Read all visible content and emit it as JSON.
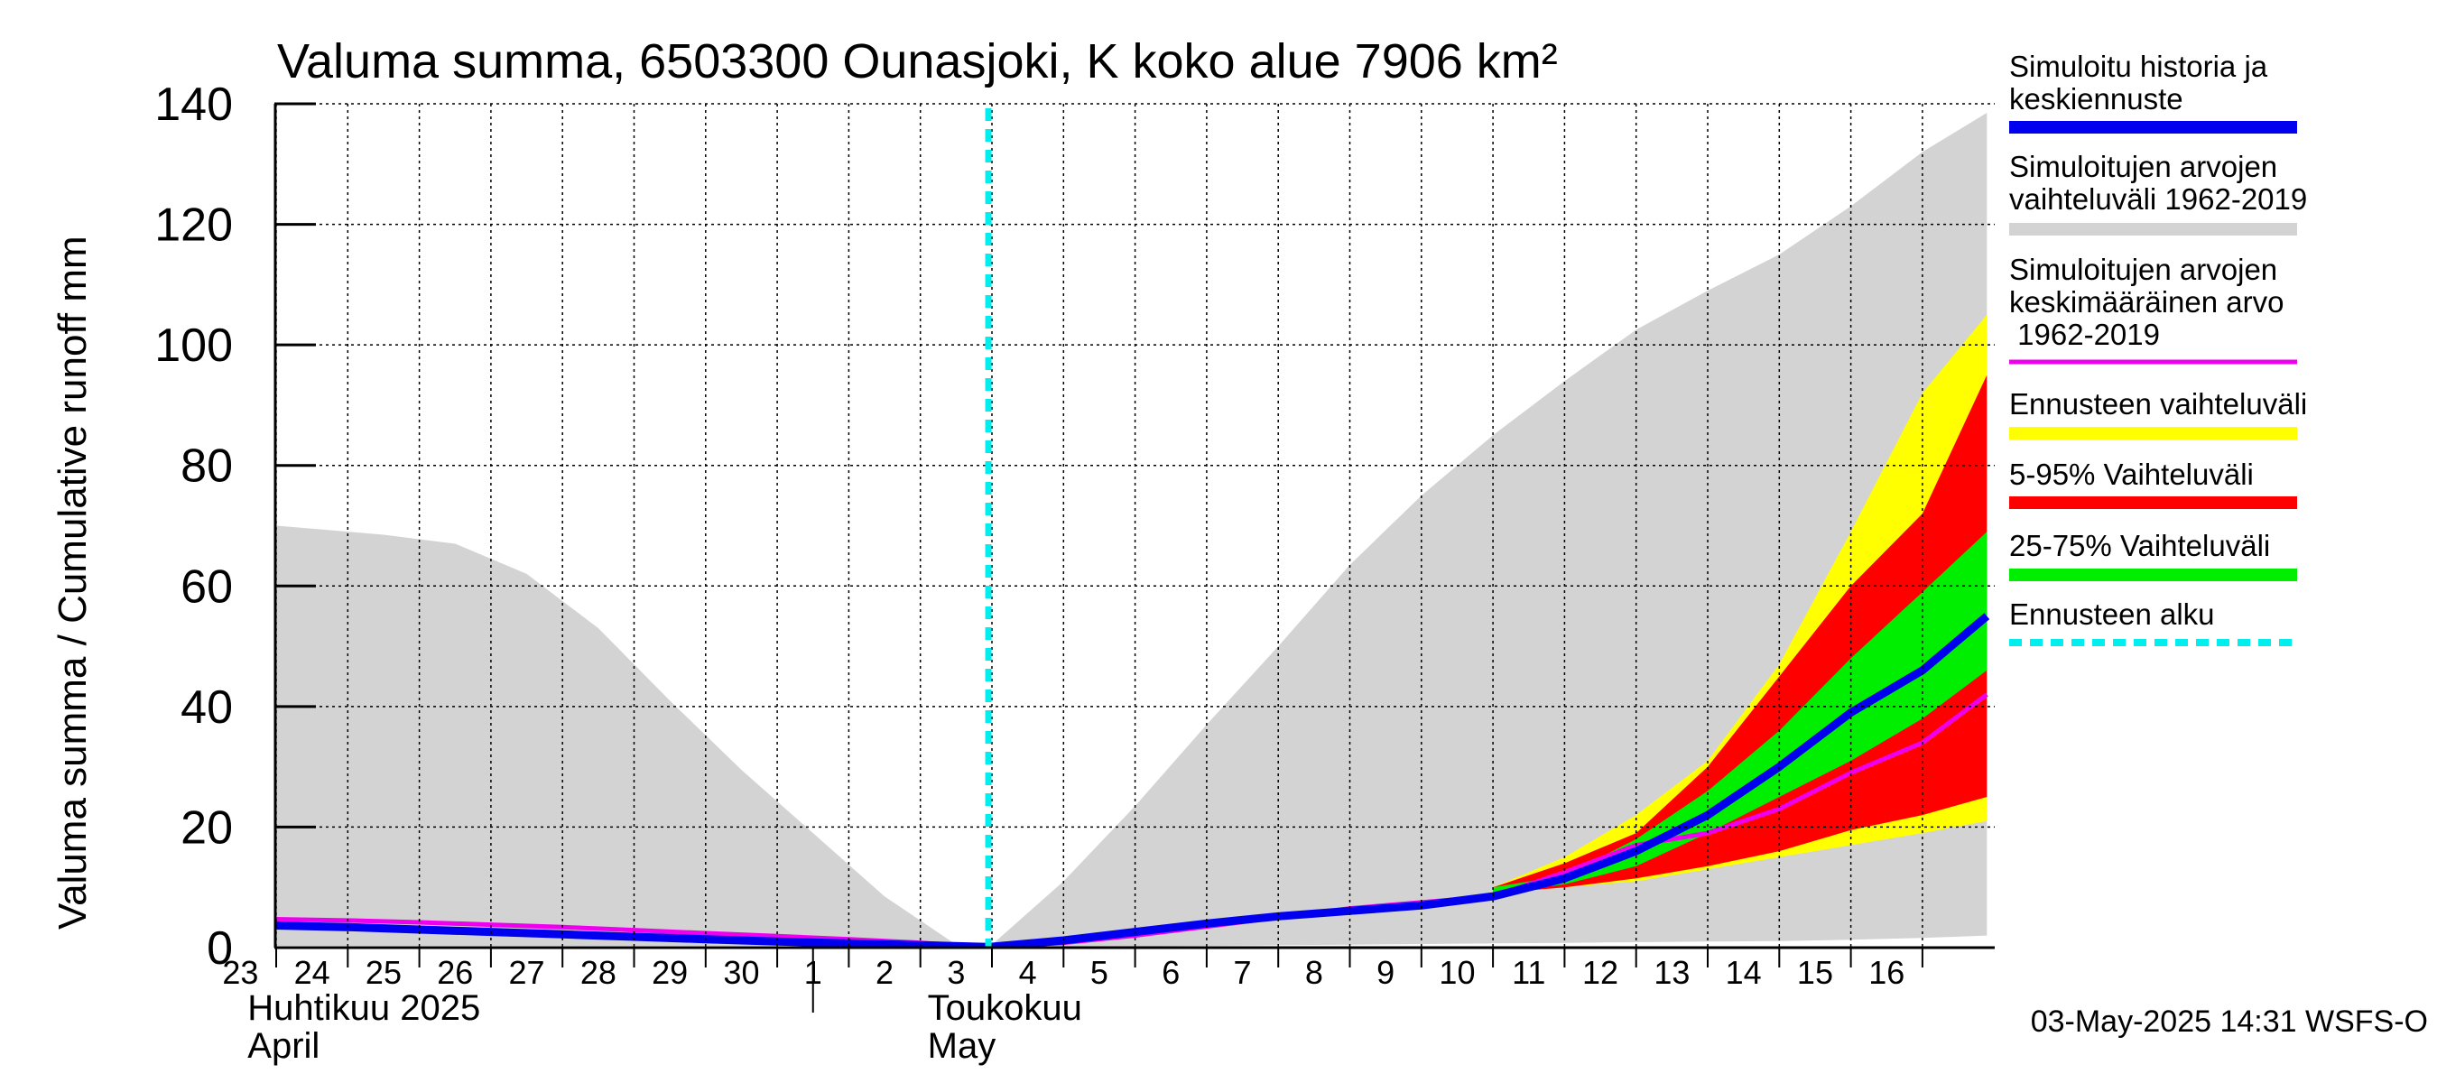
{
  "chart_data": {
    "type": "area",
    "title": "Valuma summa, 6503300 Ounasjoki, K koko alue 7906 km²",
    "ylabel": "Valuma summa / Cumulative runoff    mm",
    "ylim": [
      0,
      140
    ],
    "yticks": [
      "0",
      "20",
      "40",
      "60",
      "80",
      "100",
      "120",
      "140"
    ],
    "ytick_values": [
      0,
      20,
      40,
      60,
      80,
      100,
      120,
      140
    ],
    "x_range": [
      -10,
      14
    ],
    "x_tick_labels": [
      "23",
      "24",
      "25",
      "26",
      "27",
      "28",
      "29",
      "30",
      "1",
      "2",
      "3",
      "4",
      "5",
      "6",
      "7",
      "8",
      "9",
      "10",
      "11",
      "12",
      "13",
      "14",
      "15",
      "16"
    ],
    "x_tick_positions": [
      -10,
      -9,
      -8,
      -7,
      -6,
      -5,
      -4,
      -3,
      -2,
      -1,
      0,
      1,
      2,
      3,
      4,
      5,
      6,
      7,
      8,
      9,
      10,
      11,
      12,
      13
    ],
    "month_labels": [
      {
        "fi": "Huhtikuu  2025",
        "en": "April",
        "x": -10.4
      },
      {
        "fi": "Toukokuu",
        "en": "May",
        "x": -0.9
      }
    ],
    "month_separator_x": -2.5,
    "forecast_start_x": -0.05,
    "grid": true,
    "legend_placement": "right",
    "timestamp": "03-May-2025 14:31 WSFS-O",
    "colors": {
      "history_range": "#d3d3d3",
      "forecast_range": "#ffff00",
      "range_5_95": "#ff0000",
      "range_25_75": "#00ee00",
      "median": "#0000ee",
      "mean": "#ee00ee",
      "forecast_start": "#00eeee"
    },
    "series": [
      {
        "name": "Simuloitujen arvojen vaihteluväli 1962-2019",
        "kind": "band",
        "color": "#d3d3d3",
        "x": [
          -10.5,
          -9.5,
          -8.5,
          -7.5,
          -6.5,
          -5.5,
          -4.5,
          -3.5,
          -2.5,
          -1.5,
          -0.5,
          0,
          1,
          2,
          3,
          4,
          5,
          6,
          7,
          8,
          9,
          10,
          11,
          12,
          13,
          13.9
        ],
        "upper": [
          70.5,
          69.5,
          68.5,
          67,
          62,
          53,
          41,
          29.5,
          19,
          8.5,
          0.5,
          0.5,
          11,
          23.5,
          37,
          50,
          63.5,
          75,
          85,
          94,
          102.5,
          109,
          115,
          123,
          132,
          138.5
        ],
        "lower": [
          0.3,
          0.3,
          0.3,
          0.3,
          0.3,
          0.3,
          0.3,
          0.3,
          0.3,
          0.2,
          0.1,
          0,
          0.1,
          0.2,
          0.3,
          0.4,
          0.5,
          0.6,
          0.7,
          0.8,
          0.9,
          1,
          1.1,
          1.3,
          1.6,
          2
        ]
      },
      {
        "name": "Ennusteen vaihteluväli",
        "kind": "band",
        "color": "#ffff00",
        "x": [
          7,
          8,
          9,
          10,
          11,
          12,
          13,
          13.9
        ],
        "upper": [
          10,
          15,
          22,
          31,
          47,
          69,
          92,
          105
        ],
        "lower": [
          9,
          10,
          11,
          13,
          15,
          17,
          19,
          21
        ]
      },
      {
        "name": "5-95% Vaihteluväli",
        "kind": "band",
        "color": "#ff0000",
        "x": [
          7,
          8,
          9,
          10,
          11,
          12,
          13,
          13.9
        ],
        "upper": [
          10,
          14,
          19,
          30,
          45,
          60,
          72,
          95
        ],
        "lower": [
          9,
          10,
          11.5,
          13.5,
          16,
          19.5,
          22,
          25
        ]
      },
      {
        "name": "25-75% Vaihteluväli",
        "kind": "band",
        "color": "#00ee00",
        "x": [
          7,
          8,
          9,
          10,
          11,
          12,
          13,
          13.9
        ],
        "upper": [
          10,
          12,
          18,
          26,
          36,
          48,
          59,
          69
        ],
        "lower": [
          9,
          10.5,
          13.5,
          19,
          25,
          31,
          38,
          46
        ]
      },
      {
        "name": "Simuloitujen arvojen keskimääräinen arvo 1962-2019",
        "kind": "line",
        "color": "#ee00ee",
        "x": [
          -10.5,
          -9,
          -8,
          -7,
          -6,
          -5,
          -4,
          -3,
          -2,
          -1,
          -0.05,
          1,
          2,
          3,
          4,
          5,
          6,
          7,
          8,
          9,
          10,
          11,
          12,
          13,
          13.9
        ],
        "values": [
          4.8,
          4.5,
          4.2,
          3.8,
          3.4,
          2.9,
          2.4,
          1.9,
          1.4,
          0.8,
          0.1,
          0.8,
          2,
          3.5,
          5,
          6.5,
          7.5,
          8.5,
          12.5,
          17,
          19,
          23,
          29,
          34,
          42
        ]
      },
      {
        "name": "Simuloitu historia ja keskiennuste",
        "kind": "line",
        "color": "#0000ee",
        "x": [
          -10.5,
          -9,
          -8,
          -7,
          -6,
          -5,
          -4,
          -3,
          -2,
          -1,
          -0.05,
          1,
          2,
          3,
          4,
          5,
          6,
          7,
          8,
          9,
          10,
          11,
          12,
          13,
          13.9
        ],
        "values": [
          3.8,
          3.4,
          3,
          2.6,
          2.2,
          1.8,
          1.4,
          1,
          0.7,
          0.4,
          0.1,
          1.2,
          2.6,
          4,
          5.2,
          6.1,
          7,
          8.5,
          11.5,
          16,
          22,
          30,
          39,
          46,
          55
        ]
      }
    ]
  },
  "legend": [
    {
      "label": "Simuloitu historia ja\nkeskiennuste",
      "color": "#0000ee",
      "style": "solid"
    },
    {
      "label": "Simuloitujen arvojen\nvaihteluväli 1962-2019",
      "color": "#d3d3d3",
      "style": "solid"
    },
    {
      "label": "Simuloitujen arvojen\nkeskimääräinen arvo\n   1962-2019",
      "color": "#ee00ee",
      "style": "solid"
    },
    {
      "label": "Ennusteen vaihteluväli",
      "color": "#ffff00",
      "style": "solid"
    },
    {
      "label": "5-95% Vaihteluväli",
      "color": "#ff0000",
      "style": "solid"
    },
    {
      "label": "25-75% Vaihteluväli",
      "color": "#00ee00",
      "style": "solid"
    },
    {
      "label": "Ennusteen alku",
      "color": "#00eeee",
      "style": "dashed"
    }
  ]
}
